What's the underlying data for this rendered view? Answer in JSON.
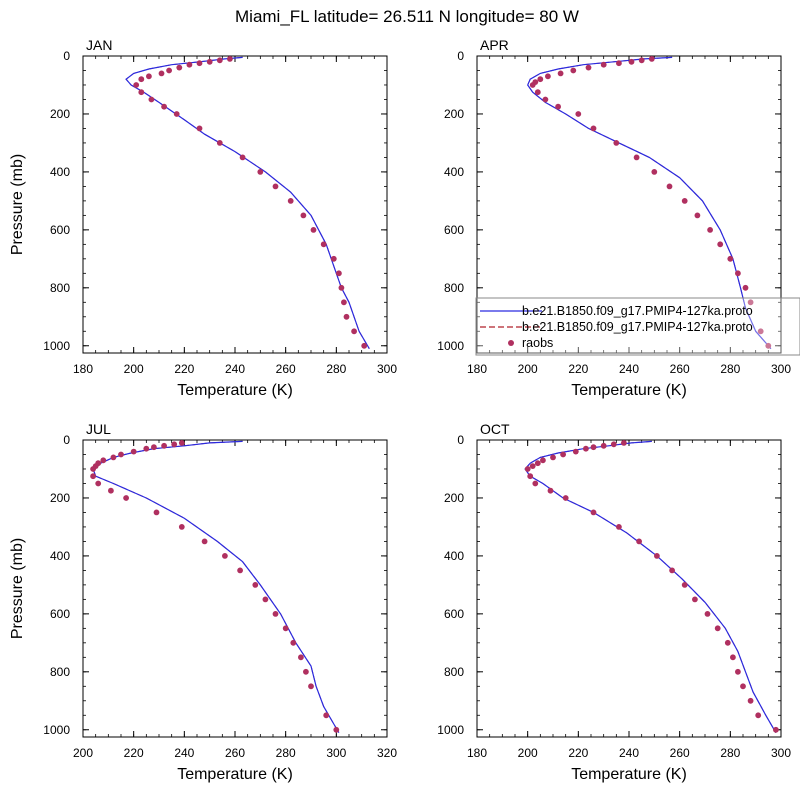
{
  "figure": {
    "title": "Miami_FL  latitude= 26.511 N longitude= 80 W"
  },
  "legend": {
    "entries": [
      {
        "label": "b.e21.B1850.f09_g17.PMIP4-127ka.proto",
        "style": "solid",
        "color": "#2a2ae0"
      },
      {
        "label": "b.e21.B1850.f09_g17.PMIP4-127ka.proto",
        "style": "dashed",
        "color": "#b0202a"
      },
      {
        "label": "raobs",
        "style": "marker",
        "color": "#b03060"
      }
    ]
  },
  "chart_data": [
    {
      "type": "line",
      "title": "JAN",
      "xlabel": "Temperature (K)",
      "ylabel": "Pressure (mb)",
      "xlim": [
        180,
        300
      ],
      "ylim": [
        0,
        1025
      ],
      "y_inverted": true,
      "xticks": [
        180,
        200,
        220,
        240,
        260,
        280,
        300
      ],
      "yticks": [
        0,
        200,
        400,
        600,
        800,
        1000
      ],
      "legend": false,
      "model": {
        "temp": [
          243,
          236,
          226,
          215,
          206,
          200,
          197,
          199,
          204,
          210,
          220,
          228,
          240,
          252,
          262,
          270,
          276,
          280,
          282,
          285,
          289,
          293
        ],
        "pres": [
          5,
          10,
          20,
          30,
          45,
          60,
          80,
          100,
          125,
          160,
          220,
          270,
          330,
          400,
          470,
          550,
          650,
          750,
          800,
          850,
          950,
          1010
        ]
      },
      "obs": {
        "temp": [
          238,
          234,
          230,
          226,
          222,
          218,
          214,
          211,
          206,
          203,
          201,
          203,
          207,
          212,
          217,
          226,
          234,
          243,
          250,
          256,
          262,
          267,
          271,
          275,
          279,
          281,
          282,
          283,
          284,
          287,
          291
        ],
        "pres": [
          10,
          15,
          20,
          25,
          30,
          40,
          50,
          60,
          70,
          80,
          100,
          125,
          150,
          175,
          200,
          250,
          300,
          350,
          400,
          450,
          500,
          550,
          600,
          650,
          700,
          750,
          800,
          850,
          900,
          950,
          1000
        ]
      }
    },
    {
      "type": "line",
      "title": "APR",
      "xlabel": "Temperature (K)",
      "ylabel": "",
      "xlim": [
        180,
        300
      ],
      "ylim": [
        0,
        1025
      ],
      "y_inverted": true,
      "xticks": [
        180,
        200,
        220,
        240,
        260,
        280,
        300
      ],
      "yticks": [
        0,
        200,
        400,
        600,
        800,
        1000
      ],
      "legend": true,
      "model": {
        "temp": [
          257,
          246,
          234,
          222,
          212,
          205,
          201,
          200,
          202,
          207,
          215,
          224,
          236,
          248,
          260,
          269,
          276,
          281,
          284,
          286,
          290,
          296
        ],
        "pres": [
          5,
          10,
          20,
          30,
          45,
          60,
          80,
          100,
          125,
          160,
          200,
          250,
          300,
          350,
          420,
          500,
          600,
          700,
          800,
          870,
          950,
          1010
        ]
      },
      "obs": {
        "temp": [
          249,
          245,
          241,
          236,
          230,
          224,
          218,
          213,
          208,
          205,
          203,
          202,
          204,
          207,
          212,
          220,
          226,
          235,
          243,
          250,
          256,
          262,
          267,
          272,
          276,
          280,
          283,
          286,
          288,
          292,
          295
        ],
        "pres": [
          10,
          15,
          20,
          25,
          30,
          40,
          50,
          60,
          70,
          80,
          90,
          100,
          125,
          150,
          175,
          200,
          250,
          300,
          350,
          400,
          450,
          500,
          550,
          600,
          650,
          700,
          750,
          800,
          850,
          950,
          1000
        ]
      }
    },
    {
      "type": "line",
      "title": "JUL",
      "xlabel": "Temperature (K)",
      "ylabel": "Pressure (mb)",
      "xlim": [
        200,
        320
      ],
      "ylim": [
        0,
        1025
      ],
      "y_inverted": true,
      "xticks": [
        200,
        220,
        240,
        260,
        280,
        300,
        320
      ],
      "yticks": [
        0,
        200,
        400,
        600,
        800,
        1000
      ],
      "legend": false,
      "model": {
        "temp": [
          263,
          250,
          240,
          228,
          219,
          212,
          207,
          204,
          205,
          212,
          225,
          240,
          253,
          263,
          270,
          278,
          284,
          290,
          292,
          295,
          299,
          301
        ],
        "pres": [
          5,
          10,
          20,
          30,
          45,
          60,
          80,
          100,
          125,
          150,
          200,
          270,
          350,
          420,
          500,
          600,
          700,
          780,
          850,
          920,
          980,
          1010
        ]
      },
      "obs": {
        "temp": [
          239,
          236,
          232,
          228,
          225,
          220,
          215,
          212,
          208,
          206,
          205,
          204,
          204,
          206,
          211,
          217,
          229,
          239,
          248,
          256,
          262,
          268,
          272,
          276,
          280,
          283,
          286,
          288,
          290,
          296,
          300
        ],
        "pres": [
          10,
          15,
          20,
          25,
          30,
          40,
          50,
          60,
          70,
          80,
          90,
          100,
          125,
          150,
          175,
          200,
          250,
          300,
          350,
          400,
          450,
          500,
          550,
          600,
          650,
          700,
          750,
          800,
          850,
          950,
          1000
        ]
      }
    },
    {
      "type": "line",
      "title": "OCT",
      "xlabel": "Temperature (K)",
      "ylabel": "",
      "xlim": [
        180,
        300
      ],
      "ylim": [
        0,
        1025
      ],
      "y_inverted": true,
      "xticks": [
        180,
        200,
        220,
        240,
        260,
        280,
        300
      ],
      "yticks": [
        0,
        200,
        400,
        600,
        800,
        1000
      ],
      "legend": false,
      "model": {
        "temp": [
          249,
          241,
          232,
          222,
          212,
          205,
          201,
          199,
          201,
          206,
          214,
          226,
          239,
          251,
          261,
          270,
          278,
          283,
          286,
          289,
          294,
          298
        ],
        "pres": [
          5,
          10,
          20,
          30,
          45,
          60,
          80,
          100,
          125,
          150,
          200,
          250,
          320,
          400,
          480,
          560,
          650,
          730,
          800,
          870,
          950,
          1010
        ]
      },
      "obs": {
        "temp": [
          238,
          234,
          230,
          226,
          223,
          219,
          214,
          210,
          206,
          204,
          202,
          200,
          201,
          203,
          209,
          215,
          226,
          236,
          244,
          251,
          257,
          262,
          266,
          271,
          275,
          279,
          281,
          283,
          285,
          288,
          291,
          298
        ],
        "pres": [
          10,
          15,
          20,
          25,
          30,
          40,
          50,
          60,
          70,
          80,
          90,
          100,
          125,
          150,
          175,
          200,
          250,
          300,
          350,
          400,
          450,
          500,
          550,
          600,
          650,
          700,
          750,
          800,
          850,
          900,
          950,
          1000
        ]
      }
    }
  ]
}
